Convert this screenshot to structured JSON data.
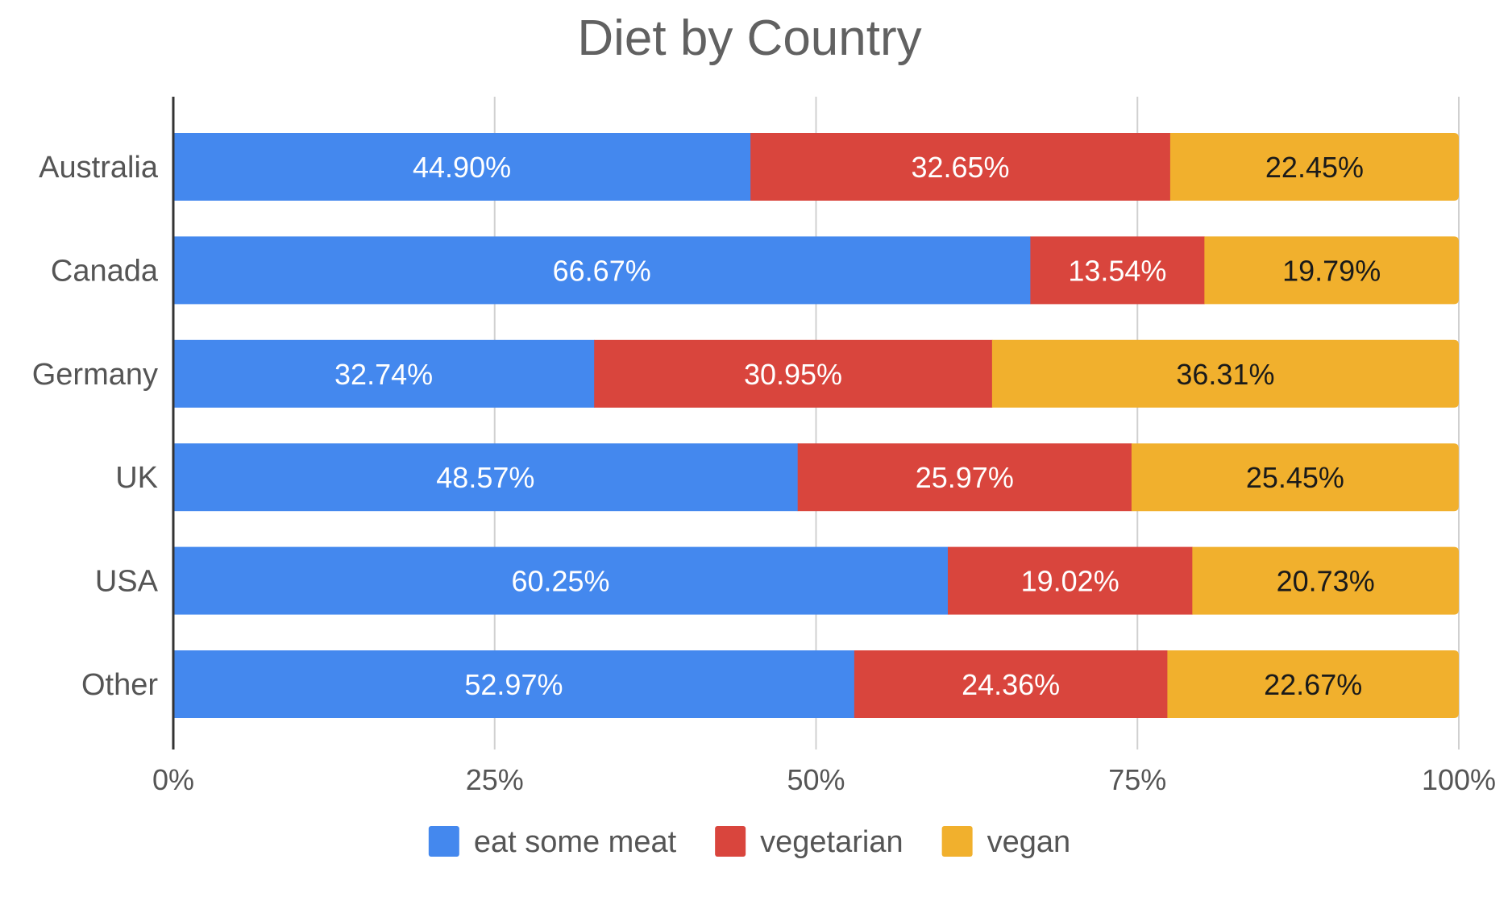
{
  "chart_data": {
    "type": "bar",
    "orientation": "horizontal",
    "stacked": "percent",
    "title": "Diet by Country",
    "categories": [
      "Australia",
      "Canada",
      "Germany",
      "UK",
      "USA",
      "Other"
    ],
    "series": [
      {
        "name": "eat some meat",
        "color": "#4488ee",
        "label_color": "#ffffff",
        "values": [
          44.9,
          66.67,
          32.74,
          48.57,
          60.25,
          52.97
        ],
        "labels": [
          "44.90%",
          "66.67%",
          "32.74%",
          "48.57%",
          "60.25%",
          "52.97%"
        ]
      },
      {
        "name": "vegetarian",
        "color": "#d9453d",
        "label_color": "#ffffff",
        "values": [
          32.65,
          13.54,
          30.95,
          25.97,
          19.02,
          24.36
        ],
        "labels": [
          "32.65%",
          "13.54%",
          "30.95%",
          "25.97%",
          "19.02%",
          "24.36%"
        ]
      },
      {
        "name": "vegan",
        "color": "#f1b02d",
        "label_color": "#1a1a1a",
        "values": [
          22.45,
          19.79,
          36.31,
          25.45,
          20.73,
          22.67
        ],
        "labels": [
          "22.45%",
          "19.79%",
          "36.31%",
          "25.45%",
          "20.73%",
          "22.67%"
        ]
      }
    ],
    "xlim": [
      0,
      100
    ],
    "xticks": [
      0,
      25,
      50,
      75,
      100
    ],
    "xtick_labels": [
      "0%",
      "25%",
      "50%",
      "75%",
      "100%"
    ],
    "grid": "vertical",
    "legend_position": "bottom"
  }
}
